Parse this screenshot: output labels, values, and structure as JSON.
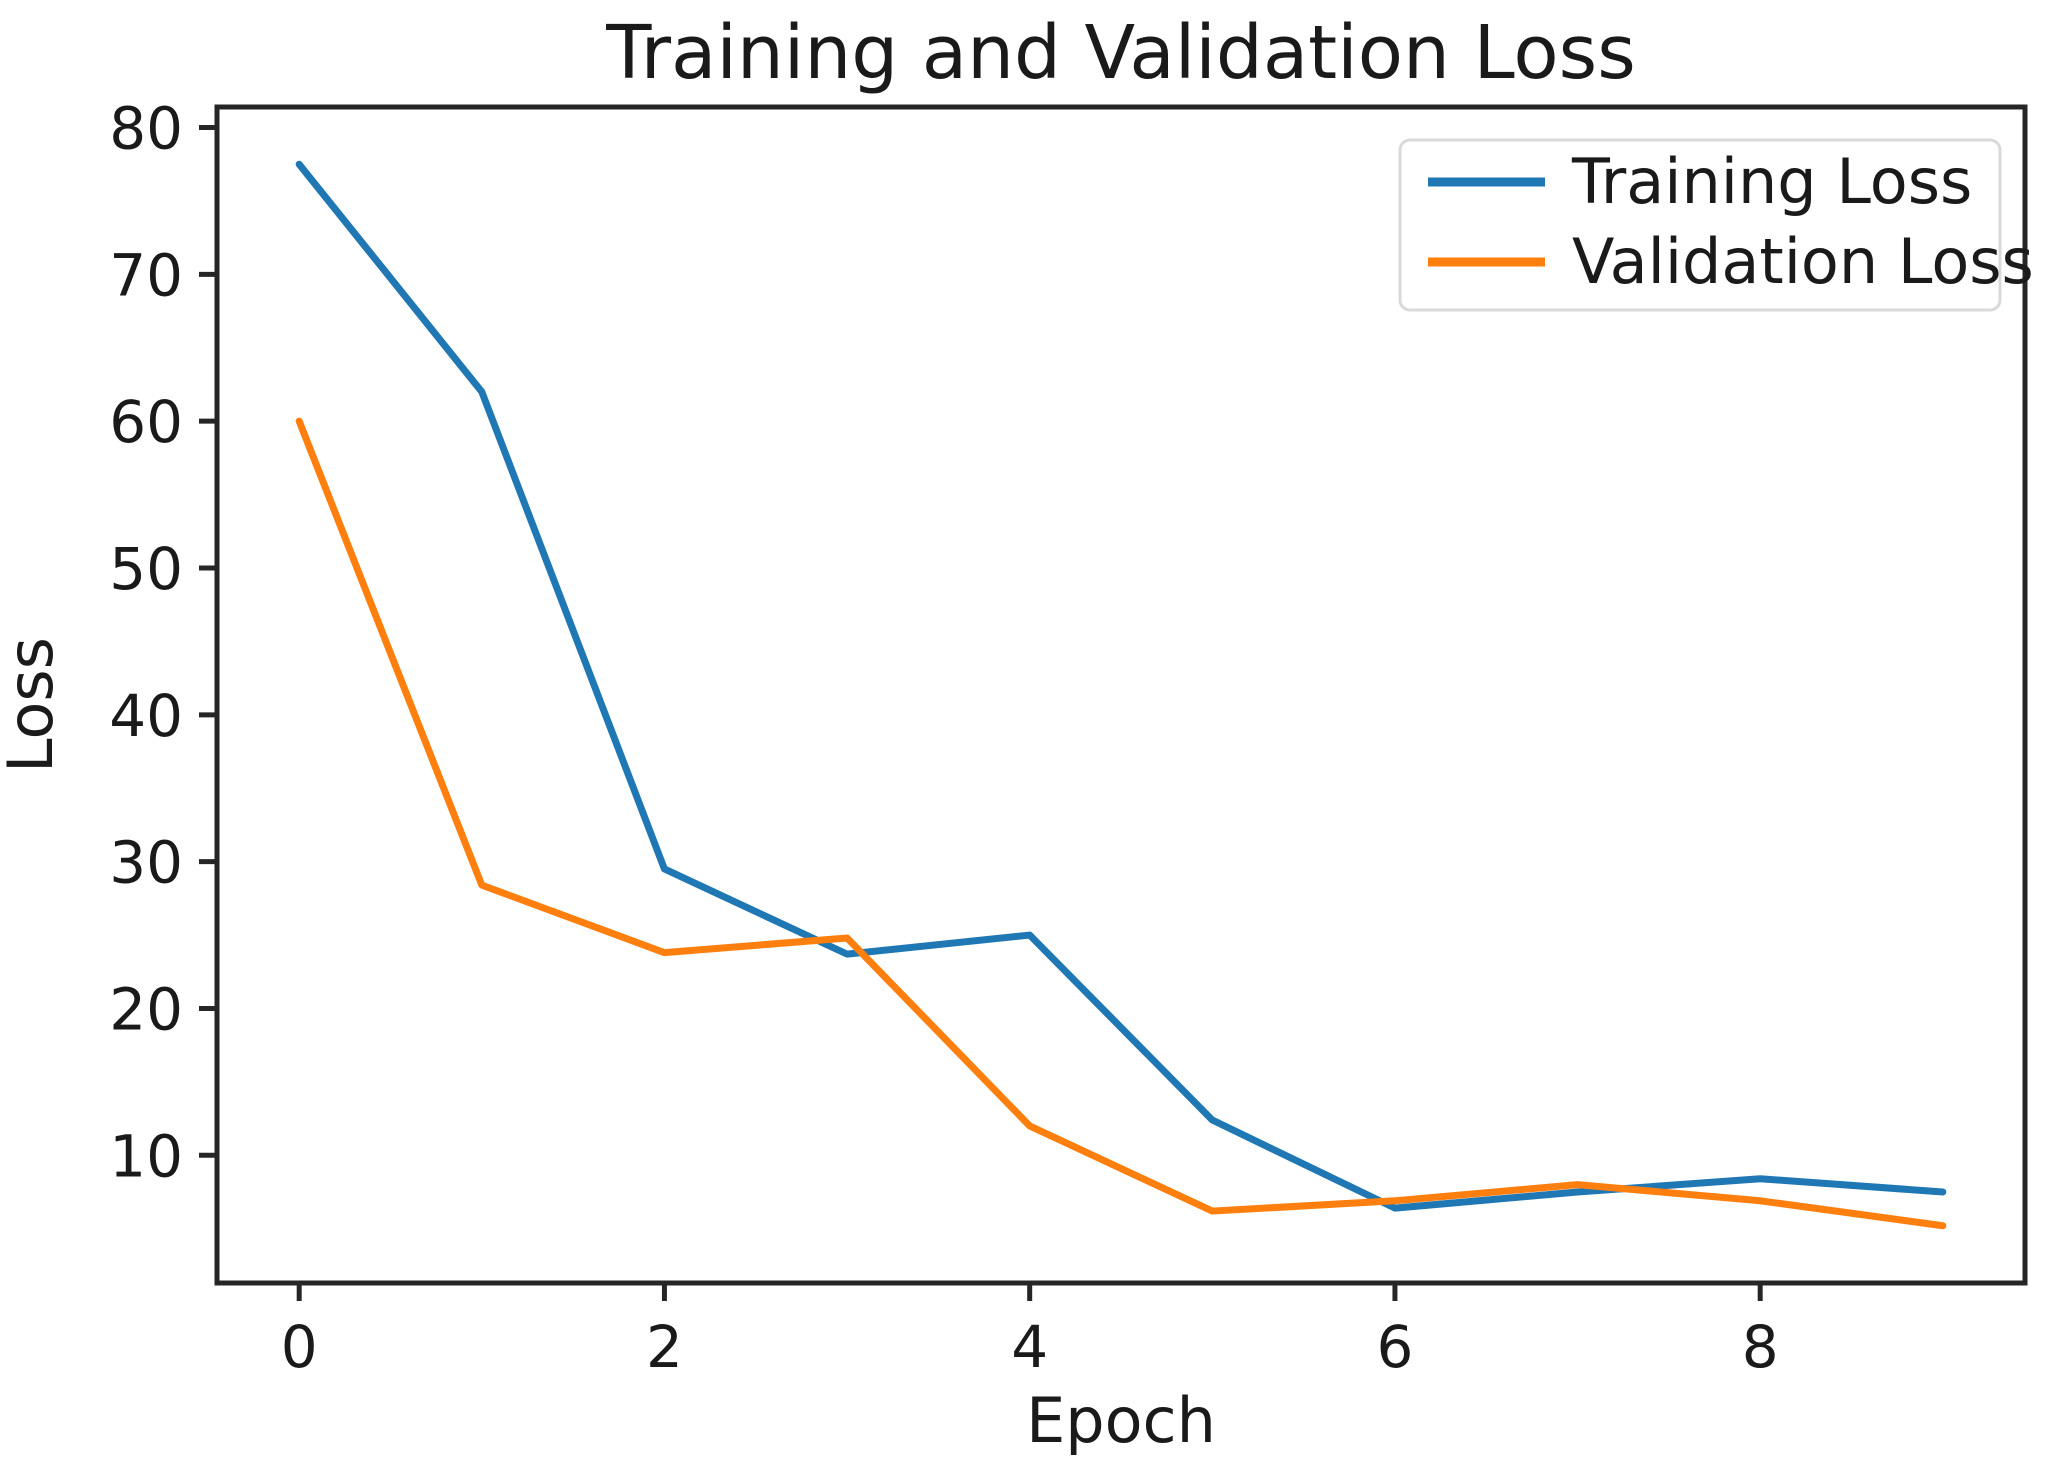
{
  "figure": {
    "title": "Training and Validation Loss",
    "xlabel": "Epoch",
    "ylabel": "Loss"
  },
  "legend": {
    "position": "upper right",
    "entries": [
      {
        "label": "Training Loss",
        "color": "#1f77b4"
      },
      {
        "label": "Validation Loss",
        "color": "#ff7f0e"
      }
    ]
  },
  "chart_data": {
    "type": "line",
    "title": "Training and Validation Loss",
    "xlabel": "Epoch",
    "ylabel": "Loss",
    "x": [
      0,
      1,
      2,
      3,
      4,
      5,
      6,
      7,
      8,
      9
    ],
    "series": [
      {
        "name": "Training Loss",
        "color": "#1f77b4",
        "values": [
          77.5,
          62.0,
          29.5,
          23.7,
          25.0,
          12.4,
          6.4,
          7.5,
          8.4,
          7.5
        ]
      },
      {
        "name": "Validation Loss",
        "color": "#ff7f0e",
        "values": [
          60.0,
          28.4,
          23.8,
          24.8,
          12.0,
          6.2,
          6.9,
          8.0,
          6.9,
          5.2
        ]
      }
    ],
    "xticks": [
      0,
      2,
      4,
      6,
      8
    ],
    "yticks": [
      10,
      20,
      30,
      40,
      50,
      60,
      70,
      80
    ],
    "xlim": [
      -0.45,
      9.45
    ],
    "ylim": [
      1.3,
      81.4
    ],
    "grid": false,
    "legend_position": "upper right",
    "line_width": 7,
    "colors": {
      "spine": "#262626",
      "text": "#1a1a1a",
      "legend_border": "#d9d9d9",
      "background": "#ffffff"
    }
  }
}
